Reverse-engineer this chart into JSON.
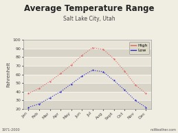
{
  "title": "Average Temperature Range",
  "subtitle": "Salt Lake City, Utah",
  "ylabel": "Fahrenheit",
  "months": [
    "Jan",
    "Feb",
    "Mar",
    "Apr",
    "May",
    "Jun",
    "Jul",
    "Aug",
    "Sept",
    "Oct",
    "Nov",
    "Dec"
  ],
  "high": [
    38,
    44,
    52,
    61,
    71,
    82,
    91,
    89,
    78,
    64,
    48,
    38
  ],
  "low": [
    22,
    26,
    33,
    40,
    49,
    58,
    65,
    63,
    53,
    42,
    30,
    22
  ],
  "high_color": "#e06060",
  "low_color": "#2222cc",
  "ylim": [
    20,
    100
  ],
  "yticks": [
    20,
    30,
    40,
    50,
    60,
    70,
    80,
    90,
    100
  ],
  "bg_color": "#e8e4d8",
  "plot_bg_light": "#e8e4d8",
  "plot_bg_dark": "#d8d4c8",
  "outer_bg": "#f0ede2",
  "grid_color": "#ffffff",
  "border_color": "#999999",
  "legend_bg": "#dddbc8",
  "watermark": "1971-2000",
  "source": "nsWeather.com",
  "title_color": "#222222",
  "subtitle_color": "#444444",
  "label_color": "#444444"
}
